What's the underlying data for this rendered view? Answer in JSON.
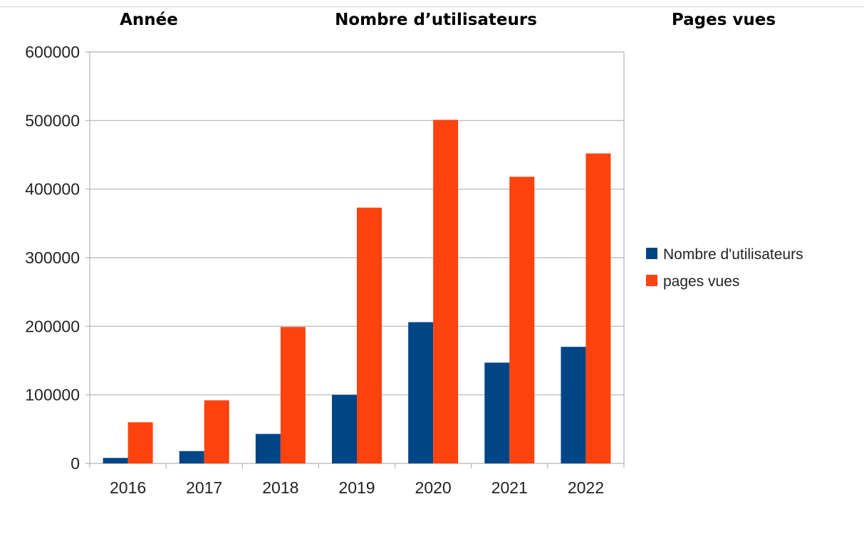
{
  "table_header": {
    "col1": "Année",
    "col2": "Nombre d’utilisateurs",
    "col3": "Pages vues"
  },
  "chart_data": {
    "type": "bar",
    "categories": [
      "2016",
      "2017",
      "2018",
      "2019",
      "2020",
      "2021",
      "2022"
    ],
    "series": [
      {
        "name": "Nombre d'utilisateurs",
        "color": "#004586",
        "values": [
          8000,
          18000,
          43000,
          100000,
          206000,
          147000,
          170000
        ]
      },
      {
        "name": "pages vues",
        "color": "#ff420e",
        "values": [
          60000,
          92000,
          199000,
          373000,
          501000,
          418000,
          452000
        ]
      }
    ],
    "ylim": [
      0,
      600000
    ],
    "yticks": [
      "0",
      "100000",
      "200000",
      "300000",
      "400000",
      "500000",
      "600000"
    ],
    "grid": true,
    "legend": "right",
    "title": "",
    "xlabel": "",
    "ylabel": ""
  }
}
